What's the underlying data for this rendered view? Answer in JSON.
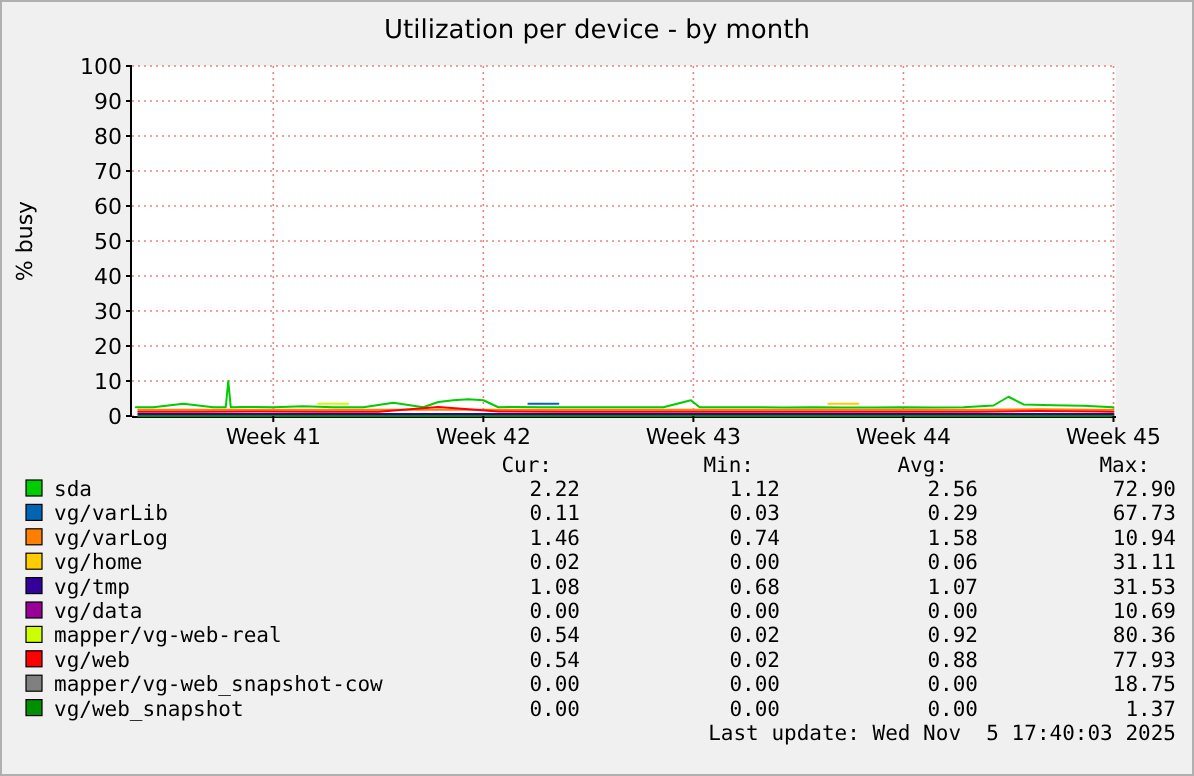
{
  "chart_data": {
    "type": "line",
    "title": "Utilization per device - by month",
    "ylabel": "% busy",
    "x": [
      "2025-10-05T00:00",
      "2025-10-07T00:00",
      "2025-10-09T00:00",
      "2025-10-11T00:00",
      "2025-10-13T00:00",
      "2025-10-15T00:00",
      "2025-10-17T00:00",
      "2025-10-19T00:00",
      "2025-10-21T00:00",
      "2025-10-23T00:00",
      "2025-10-25T00:00",
      "2025-10-27T00:00",
      "2025-10-29T00:00",
      "2025-10-31T00:00",
      "2025-11-02T00:00",
      "2025-11-04T00:00",
      "2025-11-06T00:00",
      "2025-11-06T12:00"
    ],
    "xlim": [
      "2025-10-04T19:00",
      "2025-11-06T14:00"
    ],
    "xticks": [
      {
        "value": "2025-10-09T12:00",
        "label": "Week 41"
      },
      {
        "value": "2025-10-16T12:00",
        "label": "Week 42"
      },
      {
        "value": "2025-10-23T12:00",
        "label": "Week 43"
      },
      {
        "value": "2025-10-30T12:00",
        "label": "Week 44"
      },
      {
        "value": "2025-11-06T12:00",
        "label": "Week 45"
      }
    ],
    "ylim": [
      0,
      100
    ],
    "yticks": [
      0,
      10,
      20,
      30,
      40,
      50,
      60,
      70,
      80,
      90,
      100
    ],
    "grid": true,
    "legend": "bottom",
    "line_style": "solid",
    "marker": "none",
    "series": [
      {
        "name": "sda",
        "color": "#00cc00",
        "x": [
          "2025-10-04T22:00",
          "2025-10-05T12:00",
          "2025-10-06T12:00",
          "2025-10-07T12:00",
          "2025-10-07T22:00",
          "2025-10-08T00:00",
          "2025-10-08T02:00",
          "2025-10-08T12:00",
          "2025-10-09T12:00",
          "2025-10-10T12:00",
          "2025-10-11T12:00",
          "2025-10-12T12:00",
          "2025-10-13T12:00",
          "2025-10-14T12:00",
          "2025-10-15T00:00",
          "2025-10-15T12:00",
          "2025-10-16T00:00",
          "2025-10-16T12:00",
          "2025-10-17T00:00",
          "2025-10-17T12:00",
          "2025-10-18T12:00",
          "2025-10-19T12:00",
          "2025-10-20T12:00",
          "2025-10-21T12:00",
          "2025-10-22T12:00",
          "2025-10-23T10:00",
          "2025-10-23T17:00",
          "2025-10-24T12:00",
          "2025-10-25T12:00",
          "2025-10-26T12:00",
          "2025-10-27T12:00",
          "2025-10-28T12:00",
          "2025-10-29T12:00",
          "2025-10-30T12:00",
          "2025-10-31T12:00",
          "2025-11-01T12:00",
          "2025-11-02T12:00",
          "2025-11-03T00:00",
          "2025-11-03T12:00",
          "2025-11-04T12:00",
          "2025-11-05T12:00",
          "2025-11-06T12:00"
        ],
        "values": [
          2.5,
          2.5,
          3.5,
          2.5,
          2.5,
          10,
          2.5,
          2.6,
          2.5,
          2.8,
          2.5,
          2.5,
          3.8,
          2.5,
          4,
          4.5,
          4.8,
          4.5,
          2.5,
          2.6,
          2.5,
          2.5,
          2.5,
          2.5,
          2.5,
          4.5,
          2.5,
          2.5,
          2.5,
          2.4,
          2.5,
          2.4,
          2.4,
          2.5,
          2.4,
          2.5,
          3,
          5.5,
          3.3,
          3.1,
          2.9,
          2.5
        ]
      },
      {
        "name": "vg/varLib",
        "color": "#0066b3",
        "x": [
          "2025-10-18T00:00",
          "2025-10-18T12:00",
          "2025-10-19T00:00"
        ],
        "values": [
          3.5,
          3.5,
          3.5
        ]
      },
      {
        "name": "vg/varLog",
        "color": "#ff8000",
        "values": [
          1.8,
          1.8,
          1.8,
          1.8,
          1.8,
          1.8,
          1.8,
          1.8,
          1.8,
          1.8,
          1.8,
          1.8,
          1.8,
          1.8,
          1.8,
          1.9,
          1.8,
          1.8
        ]
      },
      {
        "name": "vg/home",
        "color": "#ffcc00",
        "x": [
          "2025-10-28T00:00",
          "2025-10-28T12:00",
          "2025-10-29T00:00"
        ],
        "values": [
          3.5,
          3.5,
          3.5
        ]
      },
      {
        "name": "vg/tmp",
        "color": "#330099",
        "values": [
          0.6,
          0.6,
          0.6,
          0.6,
          0.6,
          0.6,
          0.6,
          0.6,
          0.6,
          0.6,
          0.6,
          0.6,
          0.6,
          0.6,
          0.6,
          0.6,
          0.6,
          0.6
        ]
      },
      {
        "name": "vg/data",
        "color": "#990099",
        "values": [
          null,
          null,
          null,
          null,
          null,
          null,
          null,
          null,
          null,
          null,
          null,
          null,
          null,
          null,
          null,
          null,
          null,
          null
        ]
      },
      {
        "name": "mapper/vg-web-real",
        "color": "#ccff00",
        "x": [
          "2025-10-11T00:00",
          "2025-10-11T12:00",
          "2025-10-12T00:00"
        ],
        "values": [
          3.5,
          3.5,
          3.5
        ]
      },
      {
        "name": "vg/web",
        "color": "#ff0000",
        "values": [
          1.2,
          1.2,
          1.3,
          1.2,
          1.2,
          2.6,
          1.3,
          1.2,
          1.2,
          1.2,
          1.2,
          1.2,
          1.2,
          1.2,
          1.2,
          1.4,
          1.3,
          1.2
        ]
      },
      {
        "name": "mapper/vg-web_snapshot-cow",
        "color": "#808080",
        "values": [
          null,
          null,
          null,
          null,
          null,
          null,
          null,
          null,
          null,
          null,
          null,
          null,
          null,
          null,
          null,
          null,
          null,
          null
        ]
      },
      {
        "name": "vg/web_snapshot",
        "color": "#008f00",
        "values": [
          0,
          0,
          0,
          0,
          0,
          0,
          0,
          0,
          0,
          0,
          0,
          0,
          0,
          0,
          0,
          0,
          0,
          0
        ]
      }
    ],
    "annotations": [
      "Cur:",
      "Min:",
      "Avg:",
      "Max:",
      "2.22",
      "1.12",
      "2.56",
      "72.90",
      "0.11",
      "0.03",
      "0.29",
      "67.73",
      "1.46",
      "0.74",
      "1.58",
      "10.94",
      "0.02",
      "0.00",
      "0.06",
      "31.11",
      "1.08",
      "0.68",
      "1.07",
      "31.53",
      "0.00",
      "0.00",
      "0.00",
      "10.69",
      "0.54",
      "0.02",
      "0.92",
      "80.36",
      "0.54",
      "0.02",
      "0.88",
      "77.93",
      "0.00",
      "0.00",
      "0.00",
      "18.75",
      "0.00",
      "0.00",
      "0.00",
      "1.37",
      "Last update: Wed Nov  5 17:40:03 2025"
    ]
  }
}
